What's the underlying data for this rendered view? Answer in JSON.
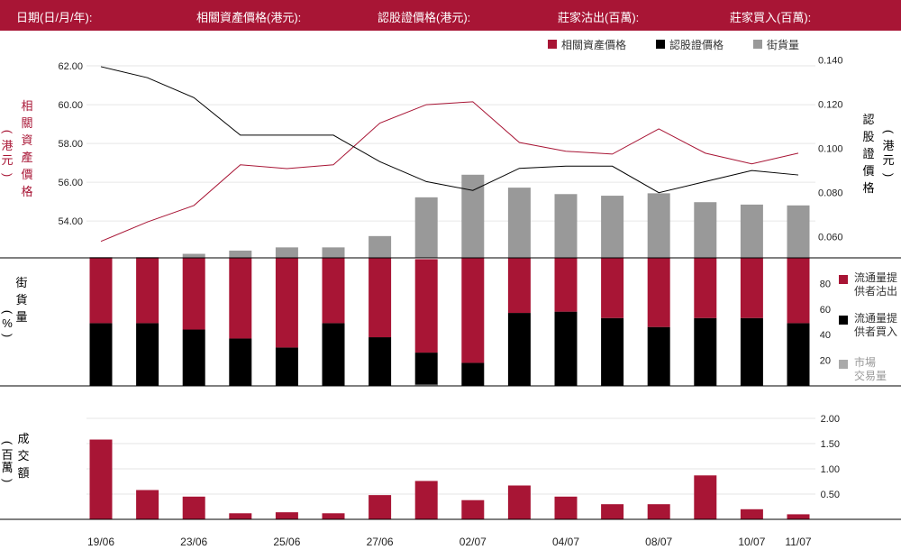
{
  "header": {
    "date_label": "日期(日/月/年):",
    "underlying_label": "相關資產價格(港元):",
    "warrant_label": "認股證價格(港元):",
    "mm_sell_label": "莊家沽出(百萬):",
    "mm_buy_label": "莊家買入(百萬):"
  },
  "colors": {
    "primary": "#a81535",
    "black": "#000000",
    "gray": "#999999",
    "light_gray": "#aaaaaa"
  },
  "chart_data": [
    {
      "type": "line",
      "title": "",
      "legend": [
        "相關資產價格",
        "認股證價格",
        "街貨量"
      ],
      "legend_placement": "top-right",
      "left_axis_label": "相關資產價格(港元)",
      "right_axis_label": "認股證價格(港元)",
      "left_ticks": [
        "62.00",
        "60.00",
        "58.00",
        "56.00",
        "54.00"
      ],
      "right_ticks": [
        "0.140",
        "0.120",
        "0.100",
        "0.080",
        "0.060"
      ],
      "ylim_left": [
        52.1,
        62.7
      ],
      "ylim_right": [
        0.0505,
        0.1435
      ],
      "series": [
        {
          "name": "相關資產價格",
          "axis": "left",
          "values": [
            52.95,
            53.95,
            54.8,
            56.9,
            56.7,
            56.9,
            59.05,
            60.0,
            60.15,
            58.05,
            57.6,
            57.45,
            58.75,
            57.5,
            56.95,
            57.5
          ]
        },
        {
          "name": "認股證價格",
          "axis": "right",
          "values": [
            0.137,
            0.132,
            0.123,
            0.106,
            0.106,
            0.106,
            0.094,
            0.085,
            0.081,
            0.091,
            0.092,
            0.092,
            0.08,
            0.085,
            0.09,
            0.088
          ]
        }
      ]
    },
    {
      "type": "bar",
      "series_name": "街貨量",
      "values_pct": [
        0.5,
        0.5,
        2.5,
        4.5,
        6.5,
        6.5,
        13.5,
        37.5,
        51.5,
        43.5,
        39.5,
        38.5,
        40.0,
        34.5,
        33.0,
        32.5
      ],
      "ylim": [
        0,
        52.5
      ]
    },
    {
      "type": "bar",
      "stacked": true,
      "axis_label": "街貨量(%)",
      "ticks": [
        "80",
        "60",
        "40",
        "20"
      ],
      "ylim": [
        0,
        100
      ],
      "legend": [
        "流通量提供者沽出",
        "流通量提供者買入",
        "市場交易量"
      ],
      "legend_lines": [
        [
          "流通量提",
          "供者沽出"
        ],
        [
          "流通量提",
          "供者買入"
        ],
        [
          "市場",
          "交易量"
        ]
      ],
      "series": [
        {
          "name": "流通量提供者買入",
          "values": [
            49,
            49,
            44,
            37,
            30,
            49,
            38,
            26,
            18,
            57,
            58,
            53,
            46,
            53,
            53,
            49
          ]
        },
        {
          "name": "流通量提供者沽出",
          "values": [
            51,
            51,
            56,
            63,
            70,
            51,
            62,
            73,
            82,
            43,
            42,
            47,
            54,
            47,
            47,
            51
          ]
        },
        {
          "name": "市場交易量",
          "values": [
            0,
            0,
            0,
            0,
            0,
            0,
            0,
            1,
            0,
            0,
            0,
            0,
            0,
            0,
            0,
            0
          ]
        }
      ]
    },
    {
      "type": "bar",
      "axis_label": "成交額(百萬)",
      "ticks": [
        "2.00",
        "1.50",
        "1.00",
        "0.50"
      ],
      "ylim": [
        0,
        2.0
      ],
      "values": [
        1.58,
        0.58,
        0.45,
        0.12,
        0.14,
        0.12,
        0.48,
        0.76,
        0.38,
        0.67,
        0.45,
        0.3,
        0.3,
        0.87,
        0.2,
        0.1
      ],
      "x_tick_labels": [
        "19/06",
        "",
        "23/06",
        "",
        "25/06",
        "",
        "27/06",
        "",
        "02/07",
        "",
        "04/07",
        "",
        "08/07",
        "",
        "10/07",
        "11/07"
      ]
    }
  ]
}
